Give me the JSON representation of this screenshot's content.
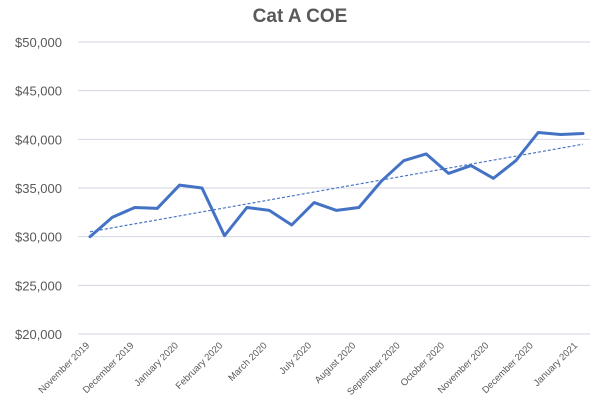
{
  "chart_data": {
    "type": "line",
    "title": "Cat A COE",
    "xlabel": "",
    "ylabel": "",
    "ylim": [
      20000,
      50000
    ],
    "yticks": [
      20000,
      25000,
      30000,
      35000,
      40000,
      45000,
      50000
    ],
    "ytick_labels": [
      "$20,000",
      "$25,000",
      "$30,000",
      "$35,000",
      "$40,000",
      "$45,000",
      "$50,000"
    ],
    "xtick_labels": [
      "November 2019",
      "December 2019",
      "January 2020",
      "February 2020",
      "March 2020",
      "July 2020",
      "August 2020",
      "September 2020",
      "October 2020",
      "November 2020",
      "December 2020",
      "January 2021"
    ],
    "grid": "horizontal",
    "series": [
      {
        "values": [
          30000,
          32000,
          33000,
          32900,
          35300,
          35000,
          30100,
          33000,
          32700,
          31200,
          33500,
          32700,
          33000,
          35700,
          37800,
          38500,
          36500,
          37300,
          36000,
          37800,
          40700,
          40500,
          40600
        ],
        "color": "#4472c4"
      }
    ],
    "trendline": {
      "style": "dashed",
      "start": 30500,
      "end": 39500,
      "color": "#4472c4"
    }
  }
}
